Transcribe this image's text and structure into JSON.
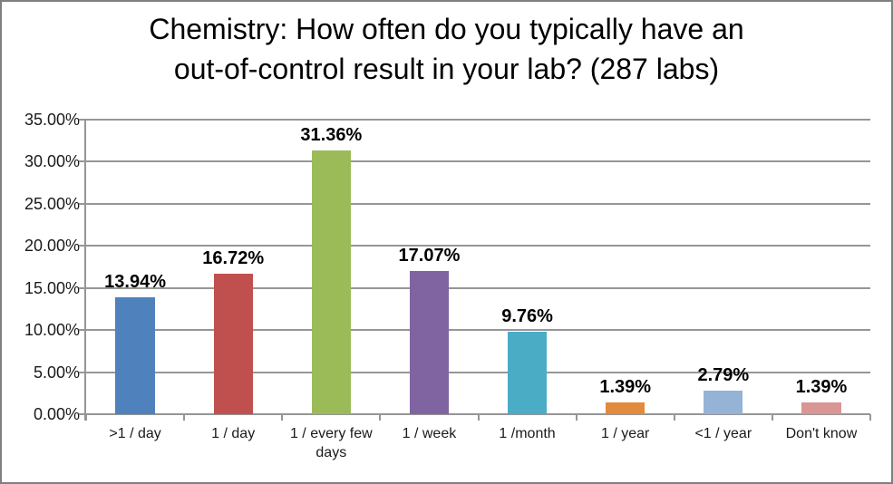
{
  "header": {
    "title": "Chemistry: How often do you typically have an\nout-of-control result in your lab? (287 labs)"
  },
  "chart_data": {
    "type": "bar",
    "title": "Chemistry: How often do you typically have an out-of-control result in your lab? (287 labs)",
    "categories": [
      ">1 / day",
      "1 / day",
      "1 / every few days",
      "1 / week",
      "1 /month",
      "1 / year",
      "<1 / year",
      "Don't know"
    ],
    "values": [
      13.94,
      16.72,
      31.36,
      17.07,
      9.76,
      1.39,
      2.79,
      1.39
    ],
    "data_labels": [
      "13.94%",
      "16.72%",
      "31.36%",
      "17.07%",
      "9.76%",
      "1.39%",
      "2.79%",
      "1.39%"
    ],
    "bar_colors": [
      "#4F81BD",
      "#C0504D",
      "#9BBB59",
      "#8064A2",
      "#4BACC6",
      "#E38B3C",
      "#95B3D7",
      "#D99694"
    ],
    "ylabel": "",
    "xlabel": "",
    "ylim": [
      0,
      35
    ],
    "y_tick_step": 5,
    "y_tick_labels": [
      "0.00%",
      "5.00%",
      "10.00%",
      "15.00%",
      "20.00%",
      "25.00%",
      "30.00%",
      "35.00%"
    ],
    "grid": true,
    "legend": "none",
    "styles": {
      "gridline_color": "#969696",
      "axis_color": "#969696",
      "frame_border_color": "#7F7F7F",
      "background": "#FFFFFF",
      "title_color": "#000000",
      "label_color": "#000000",
      "tick_label_color": "#1A1A1A"
    }
  }
}
